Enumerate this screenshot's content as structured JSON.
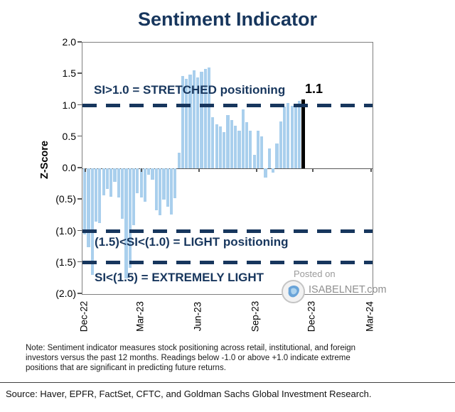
{
  "title": "Sentiment Indicator",
  "annotations": {
    "stretched": "SI>1.0 = STRETCHED positioning",
    "last_value_label": "1.1",
    "light": "(1.5)<SI<(1.0) = LIGHT positioning",
    "extremely_light": "SI<(1.5) = EXTREMELY LIGHT"
  },
  "watermark": {
    "line1": "Posted on",
    "brand": "ISABELNET.com"
  },
  "note": {
    "lines": [
      "Note: Sentiment indicator measures stock positioning across retail, institutional, and foreign",
      "investors versus the past 12 months. Readings below -1.0 or above +1.0 indicate extreme",
      "positions that are significant in predicting future returns."
    ]
  },
  "source": "Source: Haver, EPFR, FactSet, CFTC, and Goldman Sachs Global Investment Research.",
  "chart_data": {
    "type": "bar",
    "title": "Sentiment Indicator",
    "ylabel": "Z-Score",
    "ylim": [
      -2.0,
      2.0
    ],
    "ytick_labels": [
      "2.0",
      "1.5",
      "1.0",
      "0.5",
      "0.0",
      "(0.5)",
      "(1.0)",
      "(1.5)",
      "(2.0)"
    ],
    "xtick_labels": [
      "Dec-22",
      "Mar-23",
      "Jun-23",
      "Sep-23",
      "Dec-23",
      "Mar-24"
    ],
    "reference_lines": [
      1.0,
      -1.0,
      -1.5
    ],
    "grid": false,
    "legend": "none",
    "bar_color": "#A9CFED",
    "highlight_color": "#000000",
    "accent_navy": "#17365D",
    "last_value": 1.1,
    "values": [
      -1.05,
      -1.25,
      -1.7,
      -0.85,
      -0.87,
      -0.43,
      -0.33,
      -0.45,
      -0.22,
      -0.46,
      -0.8,
      -1.75,
      -1.58,
      -0.9,
      -0.4,
      -0.46,
      -0.53,
      -0.1,
      -0.18,
      -0.67,
      -0.75,
      -0.5,
      -0.61,
      -0.73,
      -0.48,
      0.25,
      1.47,
      1.42,
      1.49,
      1.56,
      1.45,
      1.54,
      1.58,
      1.61,
      0.81,
      0.7,
      0.67,
      0.58,
      0.85,
      0.77,
      0.68,
      0.6,
      0.94,
      0.73,
      0.6,
      0.21,
      0.6,
      0.51,
      -0.15,
      0.32,
      -0.07,
      0.4,
      0.75,
      0.98,
      1.04,
      1.0,
      1.02,
      1.07,
      1.1
    ]
  }
}
